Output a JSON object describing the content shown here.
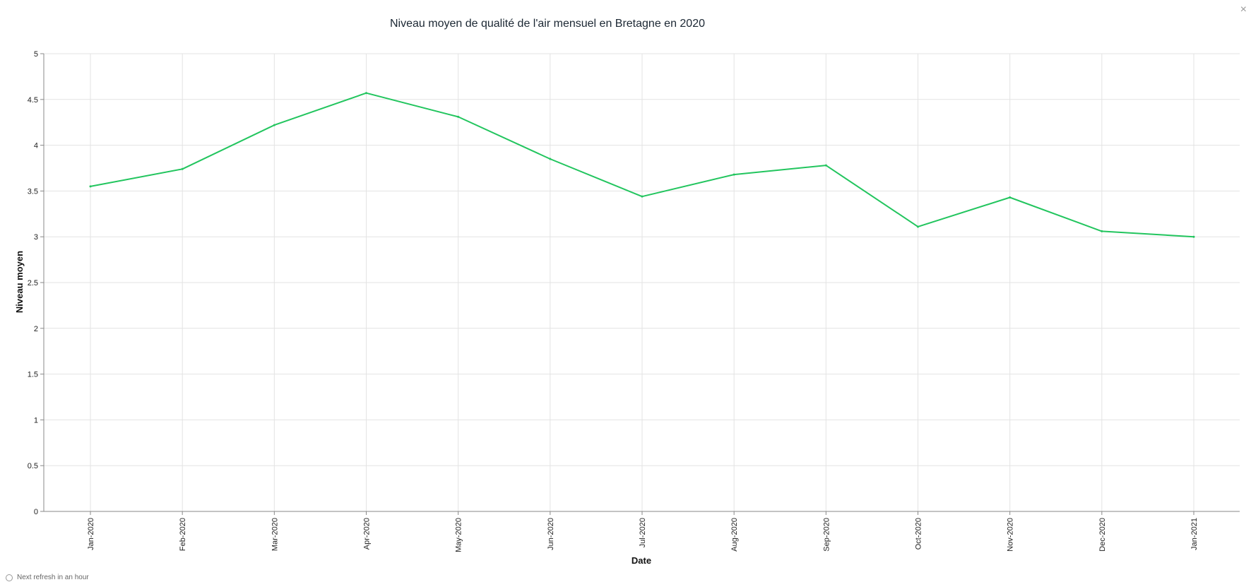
{
  "header": {
    "close_label": "×"
  },
  "footer": {
    "refresh_text": "Next refresh in an hour",
    "refresh_icon": "circle-outline-icon"
  },
  "chart_data": {
    "type": "line",
    "title": "Niveau moyen de qualité de l'air mensuel en Bretagne en 2020",
    "xlabel": "Date",
    "ylabel": "Niveau moyen",
    "ylim": [
      0,
      5
    ],
    "yticks": [
      "0",
      "0.5",
      "1",
      "1.5",
      "2",
      "2.5",
      "3",
      "3.5",
      "4",
      "4.5",
      "5"
    ],
    "categories": [
      "Jan-2020",
      "Feb-2020",
      "Mar-2020",
      "Apr-2020",
      "May-2020",
      "Jun-2020",
      "Jul-2020",
      "Aug-2020",
      "Sep-2020",
      "Oct-2020",
      "Nov-2020",
      "Dec-2020",
      "Jan-2021"
    ],
    "series": [
      {
        "color": "#22c55e",
        "values": [
          3.55,
          3.74,
          4.22,
          4.57,
          4.31,
          3.85,
          3.44,
          3.68,
          3.78,
          3.11,
          3.43,
          3.06,
          3.0
        ]
      }
    ],
    "grid": true,
    "legend": "none"
  }
}
